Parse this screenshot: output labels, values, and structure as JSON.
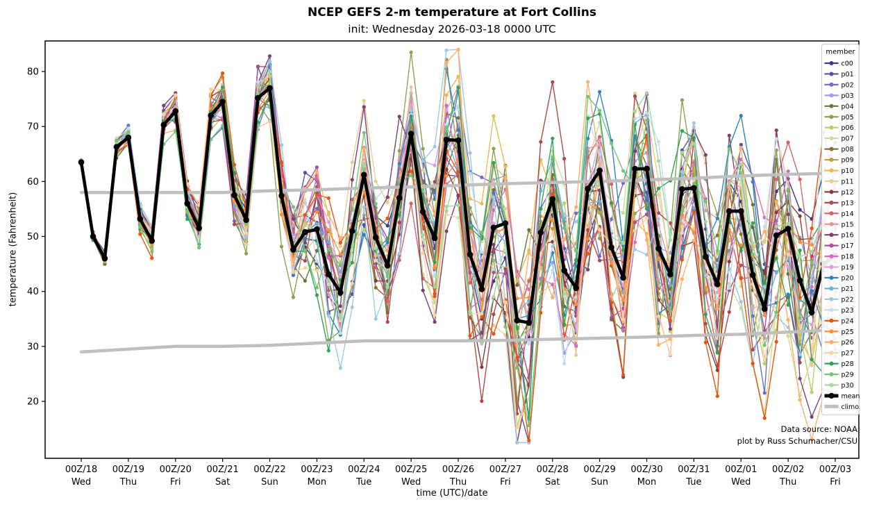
{
  "header": {
    "title": "NCEP GEFS 2-m temperature at Fort Collins",
    "subtitle": "init: Wednesday 2026-03-18 0000 UTC"
  },
  "annotation": {
    "line1": "Data source: NOAA",
    "line2": "plot by Russ Schumacher/CSU"
  },
  "axes": {
    "x_label": "time (UTC)/date",
    "y_label": "temperature (Fahrenheit)",
    "y_ticks": [
      20,
      30,
      40,
      50,
      60,
      70,
      80
    ],
    "x_ticks": [
      {
        "utc": "00Z/18",
        "day": "Wed"
      },
      {
        "utc": "00Z/19",
        "day": "Thu"
      },
      {
        "utc": "00Z/20",
        "day": "Fri"
      },
      {
        "utc": "00Z/21",
        "day": "Sat"
      },
      {
        "utc": "00Z/22",
        "day": "Sun"
      },
      {
        "utc": "00Z/23",
        "day": "Mon"
      },
      {
        "utc": "00Z/24",
        "day": "Tue"
      },
      {
        "utc": "00Z/25",
        "day": "Wed"
      },
      {
        "utc": "00Z/26",
        "day": "Thu"
      },
      {
        "utc": "00Z/27",
        "day": "Fri"
      },
      {
        "utc": "00Z/28",
        "day": "Sat"
      },
      {
        "utc": "00Z/29",
        "day": "Sun"
      },
      {
        "utc": "00Z/30",
        "day": "Mon"
      },
      {
        "utc": "00Z/31",
        "day": "Tue"
      },
      {
        "utc": "00Z/01",
        "day": "Wed"
      },
      {
        "utc": "00Z/02",
        "day": "Thu"
      },
      {
        "utc": "00Z/03",
        "day": "Fri"
      }
    ]
  },
  "legend": {
    "title": "member",
    "entries": [
      {
        "label": "c00",
        "color": "#393b79"
      },
      {
        "label": "p01",
        "color": "#5254a3"
      },
      {
        "label": "p02",
        "color": "#6b6ecf"
      },
      {
        "label": "p03",
        "color": "#9c9ede"
      },
      {
        "label": "p04",
        "color": "#637939"
      },
      {
        "label": "p05",
        "color": "#8ca252"
      },
      {
        "label": "p06",
        "color": "#b5cf6b"
      },
      {
        "label": "p07",
        "color": "#cedb9c"
      },
      {
        "label": "p08",
        "color": "#8c6d31"
      },
      {
        "label": "p09",
        "color": "#bd9e39"
      },
      {
        "label": "p10",
        "color": "#e7ba52"
      },
      {
        "label": "p11",
        "color": "#e7cb94"
      },
      {
        "label": "p12",
        "color": "#843c39"
      },
      {
        "label": "p13",
        "color": "#ad494a"
      },
      {
        "label": "p14",
        "color": "#d6616b"
      },
      {
        "label": "p15",
        "color": "#e7969c"
      },
      {
        "label": "p16",
        "color": "#7b4173"
      },
      {
        "label": "p17",
        "color": "#a55194"
      },
      {
        "label": "p18",
        "color": "#ce6dbd"
      },
      {
        "label": "p19",
        "color": "#de9ed6"
      },
      {
        "label": "p20",
        "color": "#3182bd"
      },
      {
        "label": "p21",
        "color": "#6baed6"
      },
      {
        "label": "p22",
        "color": "#9ecae1"
      },
      {
        "label": "p23",
        "color": "#c6dbef"
      },
      {
        "label": "p24",
        "color": "#e6550d"
      },
      {
        "label": "p25",
        "color": "#fd8d3c"
      },
      {
        "label": "p26",
        "color": "#fdae6b"
      },
      {
        "label": "p27",
        "color": "#fdd0a2"
      },
      {
        "label": "p28",
        "color": "#31a354"
      },
      {
        "label": "p29",
        "color": "#74c476"
      },
      {
        "label": "p30",
        "color": "#a1d99b"
      },
      {
        "label": "mean",
        "color": "#000000"
      },
      {
        "label": "climo",
        "color": "#bfbfbf"
      }
    ]
  },
  "chart_data": {
    "type": "line",
    "title": "NCEP GEFS 2-m temperature at Fort Collins",
    "xlabel": "time (UTC)/date",
    "ylabel": "temperature (Fahrenheit)",
    "x_unit": "hours since init 0000 UTC 2026-03-18",
    "x_hours": [
      0,
      6,
      12,
      18,
      24,
      30,
      36,
      42,
      48,
      54,
      60,
      66,
      72,
      78,
      84,
      90,
      96,
      102,
      108,
      114,
      120,
      126,
      132,
      138,
      144,
      150,
      156,
      162,
      168,
      174,
      180,
      186,
      192,
      198,
      204,
      210,
      216,
      222,
      228,
      234,
      240,
      246,
      252,
      258,
      264,
      270,
      276,
      282,
      288,
      294,
      300,
      306,
      312,
      318,
      324,
      330,
      336,
      342,
      348,
      354,
      360,
      366,
      372,
      378,
      384
    ],
    "xlim_hours": [
      -18,
      396
    ],
    "ylim": [
      10,
      85.5
    ],
    "grid": false,
    "legend_position": "upper right",
    "mean": [
      63.5,
      50.0,
      46.0,
      66.3,
      68.0,
      53.2,
      49.2,
      70.3,
      72.8,
      56.0,
      51.5,
      72.0,
      74.5,
      57.5,
      53.0,
      75.2,
      77.0,
      57.4,
      47.6,
      50.8,
      51.3,
      43.1,
      39.8,
      51.0,
      61.2,
      49.8,
      44.7,
      57.0,
      68.7,
      54.5,
      49.7,
      67.6,
      67.5,
      46.7,
      40.4,
      51.6,
      52.4,
      34.7,
      34.3,
      50.7,
      56.8,
      43.8,
      40.6,
      58.7,
      62.0,
      48.0,
      42.5,
      62.3,
      62.3,
      47.8,
      43.1,
      58.6,
      58.8,
      46.3,
      41.3,
      54.6,
      54.6,
      43.0,
      36.8,
      50.2,
      51.4,
      42.0,
      36.2,
      45.0,
      46.5
    ],
    "climo_upper_daily": [
      58.0,
      58.0,
      58.0,
      58.0,
      58.3,
      58.5,
      58.8,
      59.0,
      59.3,
      59.6,
      59.8,
      60.0,
      60.3,
      60.6,
      61.0,
      61.3,
      61.5
    ],
    "climo_lower_daily": [
      29.0,
      29.5,
      30.0,
      30.0,
      30.2,
      30.6,
      31.0,
      31.0,
      31.0,
      31.1,
      31.3,
      31.5,
      31.7,
      32.0,
      32.2,
      32.6,
      33.0
    ],
    "ensemble_spread": [
      0.4,
      0.7,
      0.9,
      1.1,
      1.3,
      1.5,
      1.7,
      1.9,
      2.0,
      2.2,
      2.4,
      2.6,
      2.8,
      3.0,
      3.3,
      3.6,
      4.0,
      5.0,
      6.0,
      6.5,
      7.0,
      7.5,
      7.5,
      7.5,
      7.5,
      8.0,
      8.0,
      8.0,
      8.0,
      8.5,
      9.0,
      9.0,
      9.5,
      10.0,
      11.0,
      11.0,
      11.0,
      12.0,
      12.0,
      11.5,
      11.5,
      11.0,
      11.0,
      10.5,
      10.5,
      10.5,
      10.5,
      10.5,
      10.5,
      10.5,
      10.5,
      10.5,
      10.5,
      11.0,
      11.0,
      11.0,
      11.0,
      11.5,
      11.5,
      11.5,
      11.5,
      12.0,
      12.5,
      13.0,
      13.5
    ],
    "members": [
      "c00",
      "p01",
      "p02",
      "p03",
      "p04",
      "p05",
      "p06",
      "p07",
      "p08",
      "p09",
      "p10",
      "p11",
      "p12",
      "p13",
      "p14",
      "p15",
      "p16",
      "p17",
      "p18",
      "p19",
      "p20",
      "p21",
      "p22",
      "p23",
      "p24",
      "p25",
      "p26",
      "p27",
      "p28",
      "p29",
      "p30"
    ],
    "mean_color": "#000000",
    "climo_color": "#bfbfbf"
  }
}
